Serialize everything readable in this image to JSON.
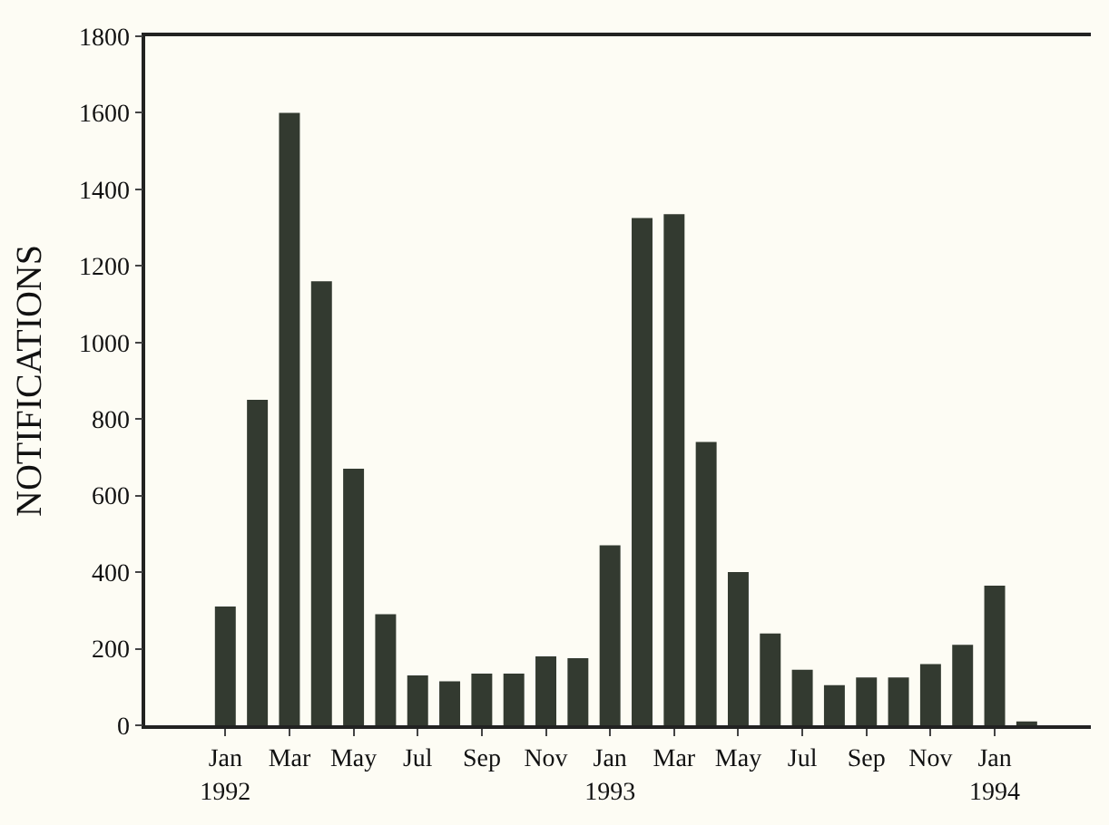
{
  "chart_data": {
    "type": "bar",
    "ylabel": "NOTIFICATIONS",
    "categories": [
      "Jan\n1992",
      null,
      "Mar",
      null,
      "May",
      null,
      "Jul",
      null,
      "Sep",
      null,
      "Nov",
      null,
      "Jan\n1993",
      null,
      "Mar",
      null,
      "May",
      null,
      "Jul",
      null,
      "Sep",
      null,
      "Nov",
      null,
      "Jan\n1994",
      null
    ],
    "values": [
      310,
      850,
      1600,
      1160,
      670,
      290,
      130,
      115,
      135,
      135,
      180,
      175,
      470,
      1325,
      1335,
      740,
      400,
      240,
      145,
      105,
      125,
      125,
      160,
      210,
      365,
      10
    ],
    "color": "#333a30",
    "ylim": [
      0,
      1800
    ],
    "yticks": [
      0,
      200,
      400,
      600,
      800,
      1000,
      1200,
      1400,
      1600,
      1800
    ],
    "grid": false
  }
}
